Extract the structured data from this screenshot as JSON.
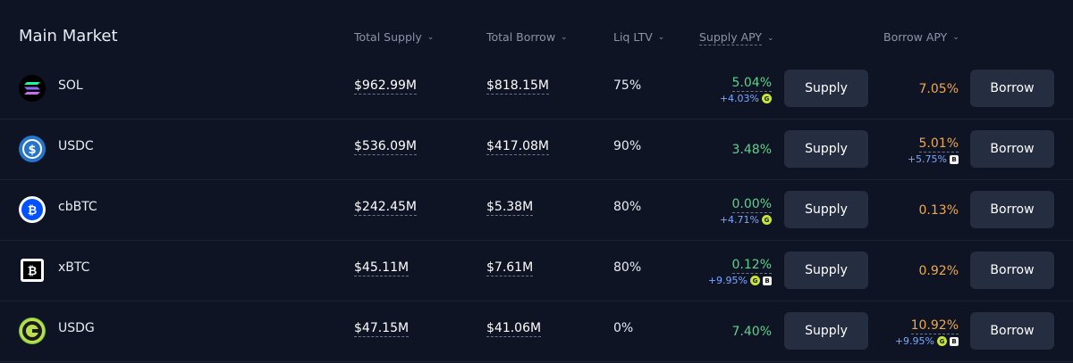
{
  "header": {
    "title": "Main Market",
    "total_supply": "Total Supply",
    "total_borrow": "Total Borrow",
    "liq_ltv": "Liq LTV",
    "supply_apy": "Supply APY",
    "borrow_apy": "Borrow APY"
  },
  "rows": [
    {
      "asset": "SOL",
      "total_supply": "$962.99M",
      "total_borrow": "$818.15M",
      "liq_ltv": "75%",
      "supply_apy": "5.04%",
      "supply_apy_sub": "+4.03%",
      "borrow_apy": "7.05%",
      "borrow_apy_sub": "",
      "supply_label": "Supply",
      "borrow_label": "Borrow"
    },
    {
      "asset": "USDC",
      "total_supply": "$536.09M",
      "total_borrow": "$417.08M",
      "liq_ltv": "90%",
      "supply_apy": "3.48%",
      "supply_apy_sub": "",
      "borrow_apy": "5.01%",
      "borrow_apy_sub": "+5.75%",
      "supply_label": "Supply",
      "borrow_label": "Borrow"
    },
    {
      "asset": "cbBTC",
      "total_supply": "$242.45M",
      "total_borrow": "$5.38M",
      "liq_ltv": "80%",
      "supply_apy": "0.00%",
      "supply_apy_sub": "+4.71%",
      "borrow_apy": "0.13%",
      "borrow_apy_sub": "",
      "supply_label": "Supply",
      "borrow_label": "Borrow"
    },
    {
      "asset": "xBTC",
      "total_supply": "$45.11M",
      "total_borrow": "$7.61M",
      "liq_ltv": "80%",
      "supply_apy": "0.12%",
      "supply_apy_sub": "+9.95%",
      "borrow_apy": "0.92%",
      "borrow_apy_sub": "",
      "supply_label": "Supply",
      "borrow_label": "Borrow"
    },
    {
      "asset": "USDG",
      "total_supply": "$47.15M",
      "total_borrow": "$41.06M",
      "liq_ltv": "0%",
      "supply_apy": "7.40%",
      "supply_apy_sub": "",
      "borrow_apy": "10.92%",
      "borrow_apy_sub": "+9.95%",
      "supply_label": "Supply",
      "borrow_label": "Borrow"
    }
  ],
  "icons": [
    "sol-icon",
    "usdc-icon",
    "cbbtc-icon",
    "xbtc-icon",
    "usdg-icon"
  ],
  "colors": {
    "background": "#0e1424",
    "button": "#252d40",
    "green": "#5fd18b",
    "orange": "#f0a848",
    "blue": "#7ea6ff"
  }
}
